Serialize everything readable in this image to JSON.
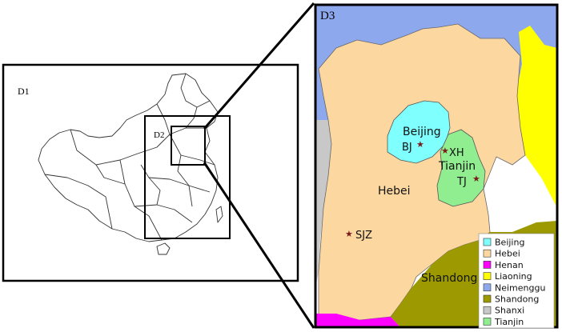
{
  "panels": {
    "d1_label": "D1",
    "d2_label": "D2",
    "d3_label": "D3"
  },
  "map_labels": {
    "beijing": "Beijing",
    "bj": "BJ",
    "xh": "XH",
    "tianjin": "Tianjin",
    "tj": "TJ",
    "hebei": "Hebei",
    "sjz": "SJZ",
    "shandong": "Shandong"
  },
  "legend": [
    {
      "label": "Beijing",
      "color": "#80ffff"
    },
    {
      "label": "Hebei",
      "color": "#fcd8a0"
    },
    {
      "label": "Henan",
      "color": "#ff00ff"
    },
    {
      "label": "Liaoning",
      "color": "#ffff00"
    },
    {
      "label": "Neimenggu",
      "color": "#8ea8ee"
    },
    {
      "label": "Shandong",
      "color": "#9c9a00"
    },
    {
      "label": "Shanxi",
      "color": "#c8c8c8"
    },
    {
      "label": "Tianjin",
      "color": "#90ee90"
    }
  ],
  "colors": {
    "beijing": "#80ffff",
    "hebei": "#fcd8a0",
    "henan": "#ff00ff",
    "liaoning": "#ffff00",
    "neimenggu": "#8ea8ee",
    "shandong": "#9c9a00",
    "shanxi": "#c8c8c8",
    "tianjin": "#90ee90",
    "sea": "#ffffff",
    "station": "#7a1a1a"
  }
}
